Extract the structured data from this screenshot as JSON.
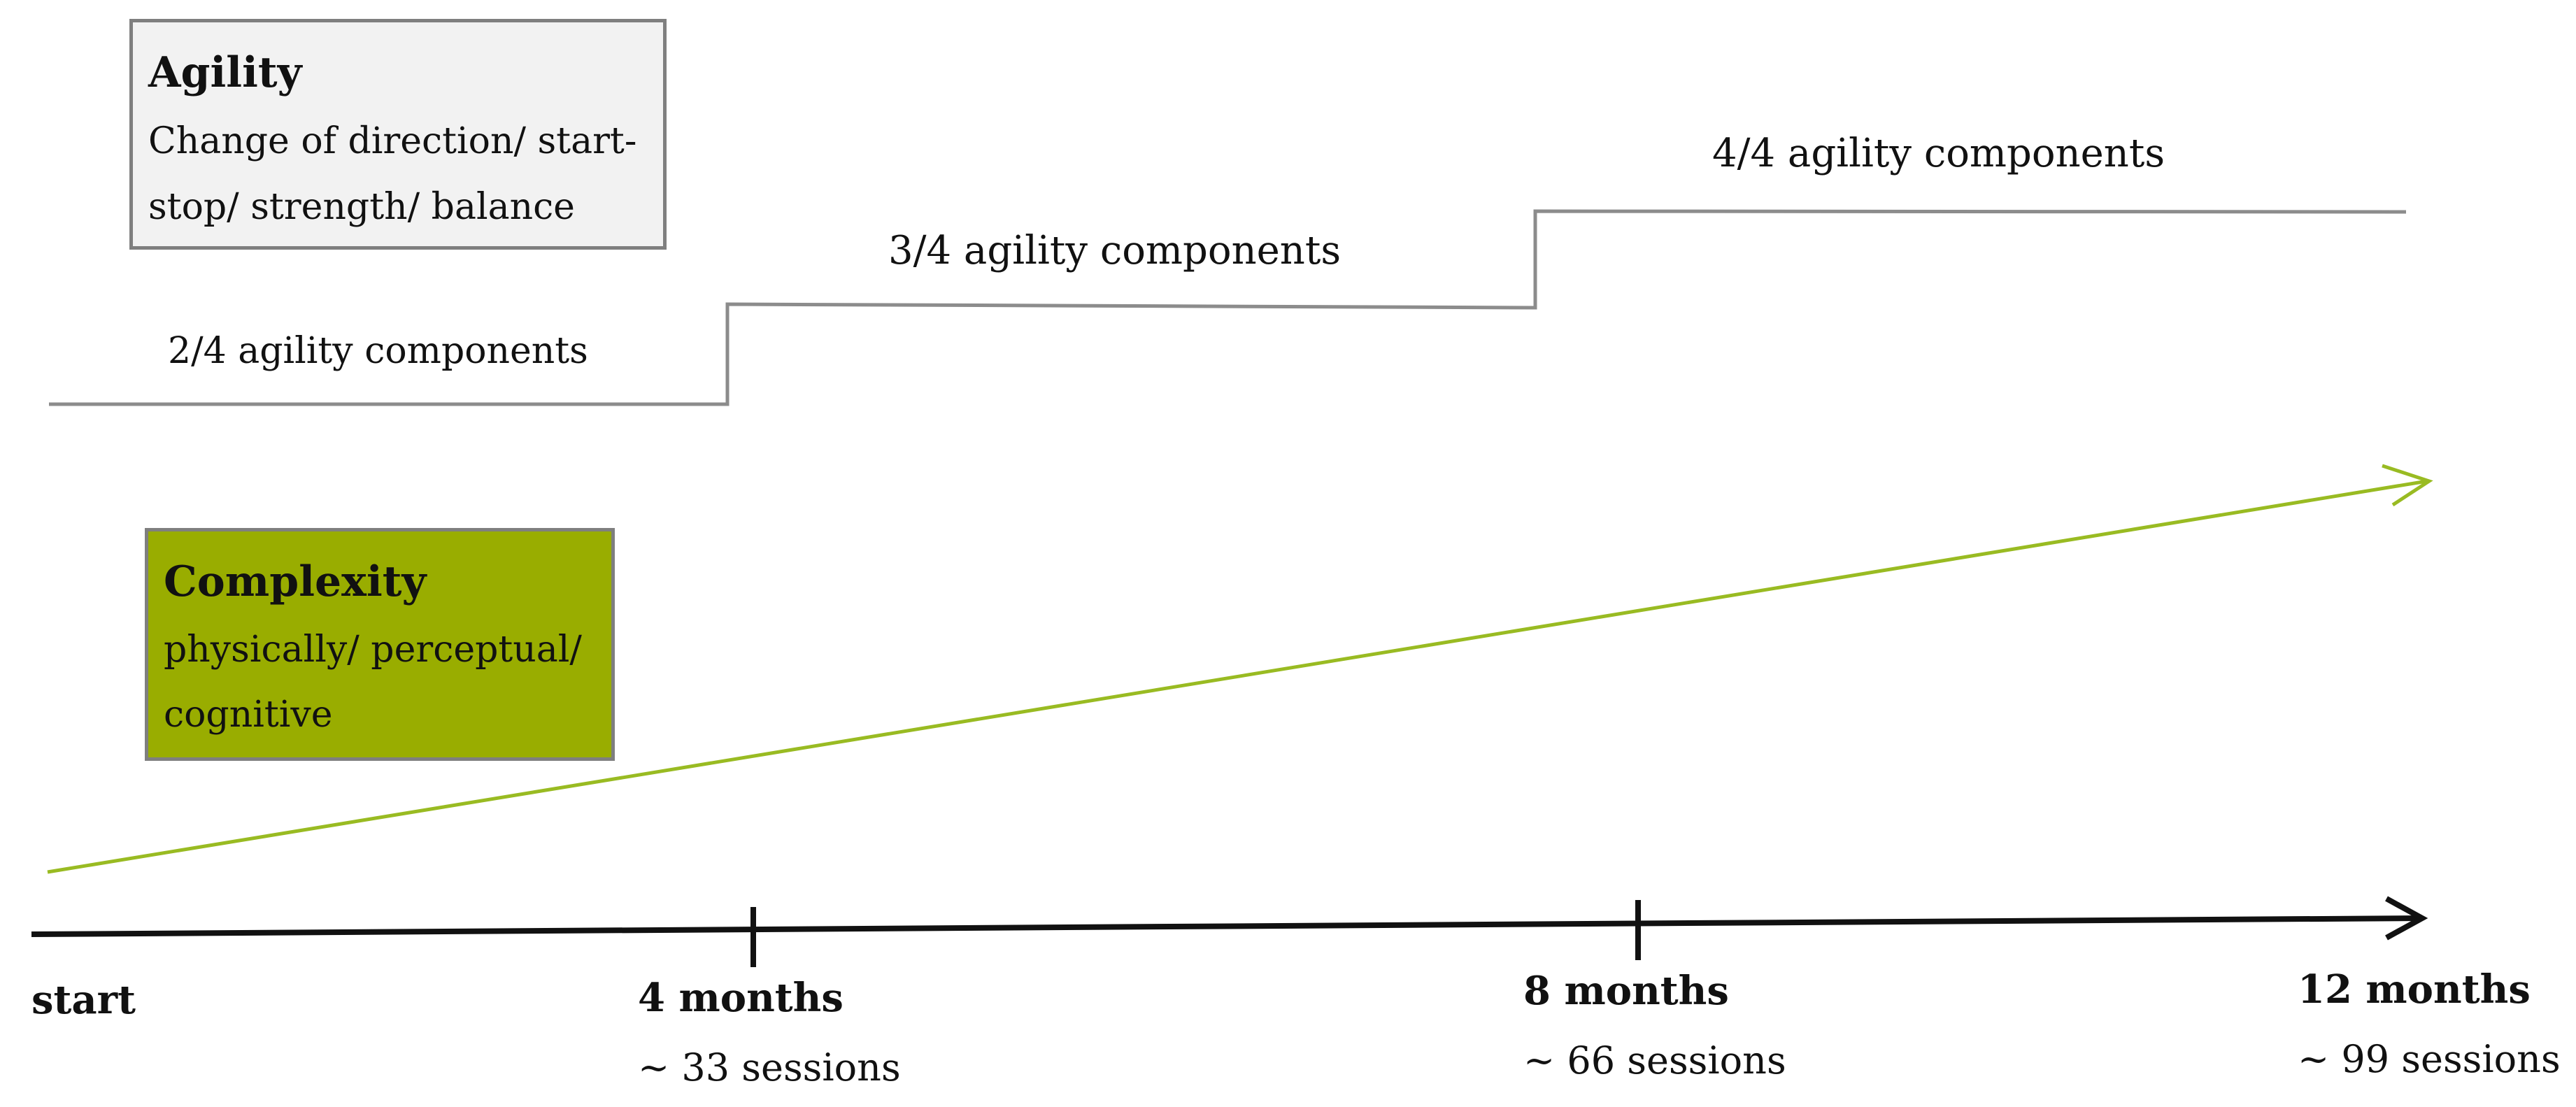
{
  "agility": {
    "title": "Agility",
    "line1": "Change of direction/ start-",
    "line2": "stop/ strength/ balance",
    "box_fill": "#f2f2f2",
    "border_color": "#7f7f7f"
  },
  "complexity": {
    "title": "Complexity",
    "line1": "physically/ perceptual/",
    "line2": "cognitive",
    "box_fill": "#99ad00",
    "arrow_color": "#99bb22"
  },
  "steps": [
    {
      "label": "2/4 agility components"
    },
    {
      "label": "3/4 agility components"
    },
    {
      "label": "4/4 agility components"
    }
  ],
  "timeline": {
    "start_label": "start",
    "milestones": [
      {
        "label": "4 months",
        "sessions": "~ 33 sessions"
      },
      {
        "label": "8 months",
        "sessions": "~ 66 sessions"
      },
      {
        "label": "12 months",
        "sessions": "~ 99 sessions"
      }
    ]
  },
  "colors": {
    "step_line": "#8c8c8c",
    "timeline_axis": "#111111"
  }
}
